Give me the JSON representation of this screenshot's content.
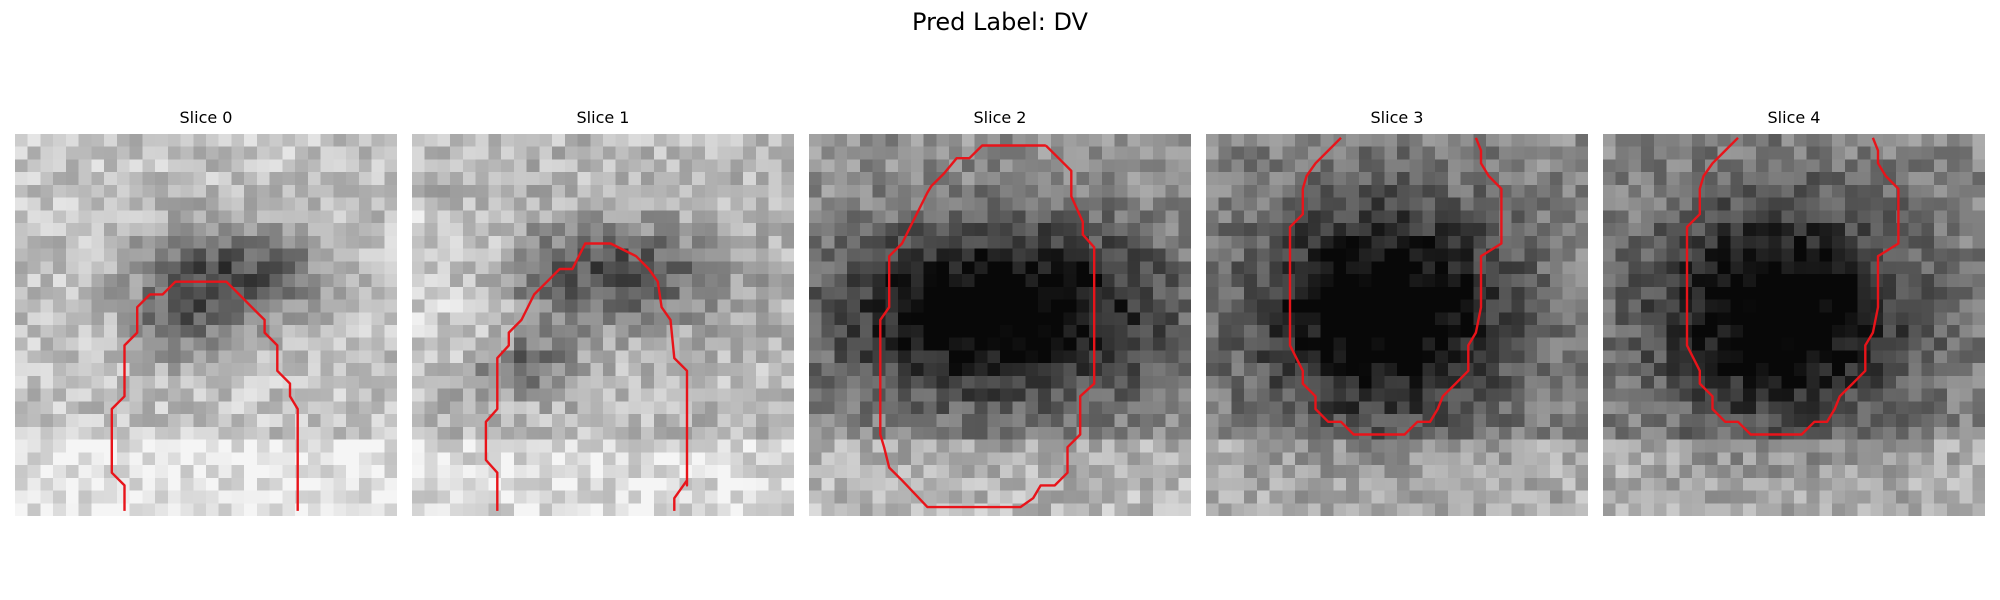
{
  "figure": {
    "title": "Pred Label: DV"
  },
  "panels": [
    {
      "title": "Slice 0",
      "contour_color": "#e8141a"
    },
    {
      "title": "Slice 1",
      "contour_color": "#e8141a"
    },
    {
      "title": "Slice 2",
      "contour_color": "#e8141a"
    },
    {
      "title": "Slice 3",
      "contour_color": "#e8141a"
    },
    {
      "title": "Slice 4",
      "contour_color": "#e8141a"
    }
  ]
}
